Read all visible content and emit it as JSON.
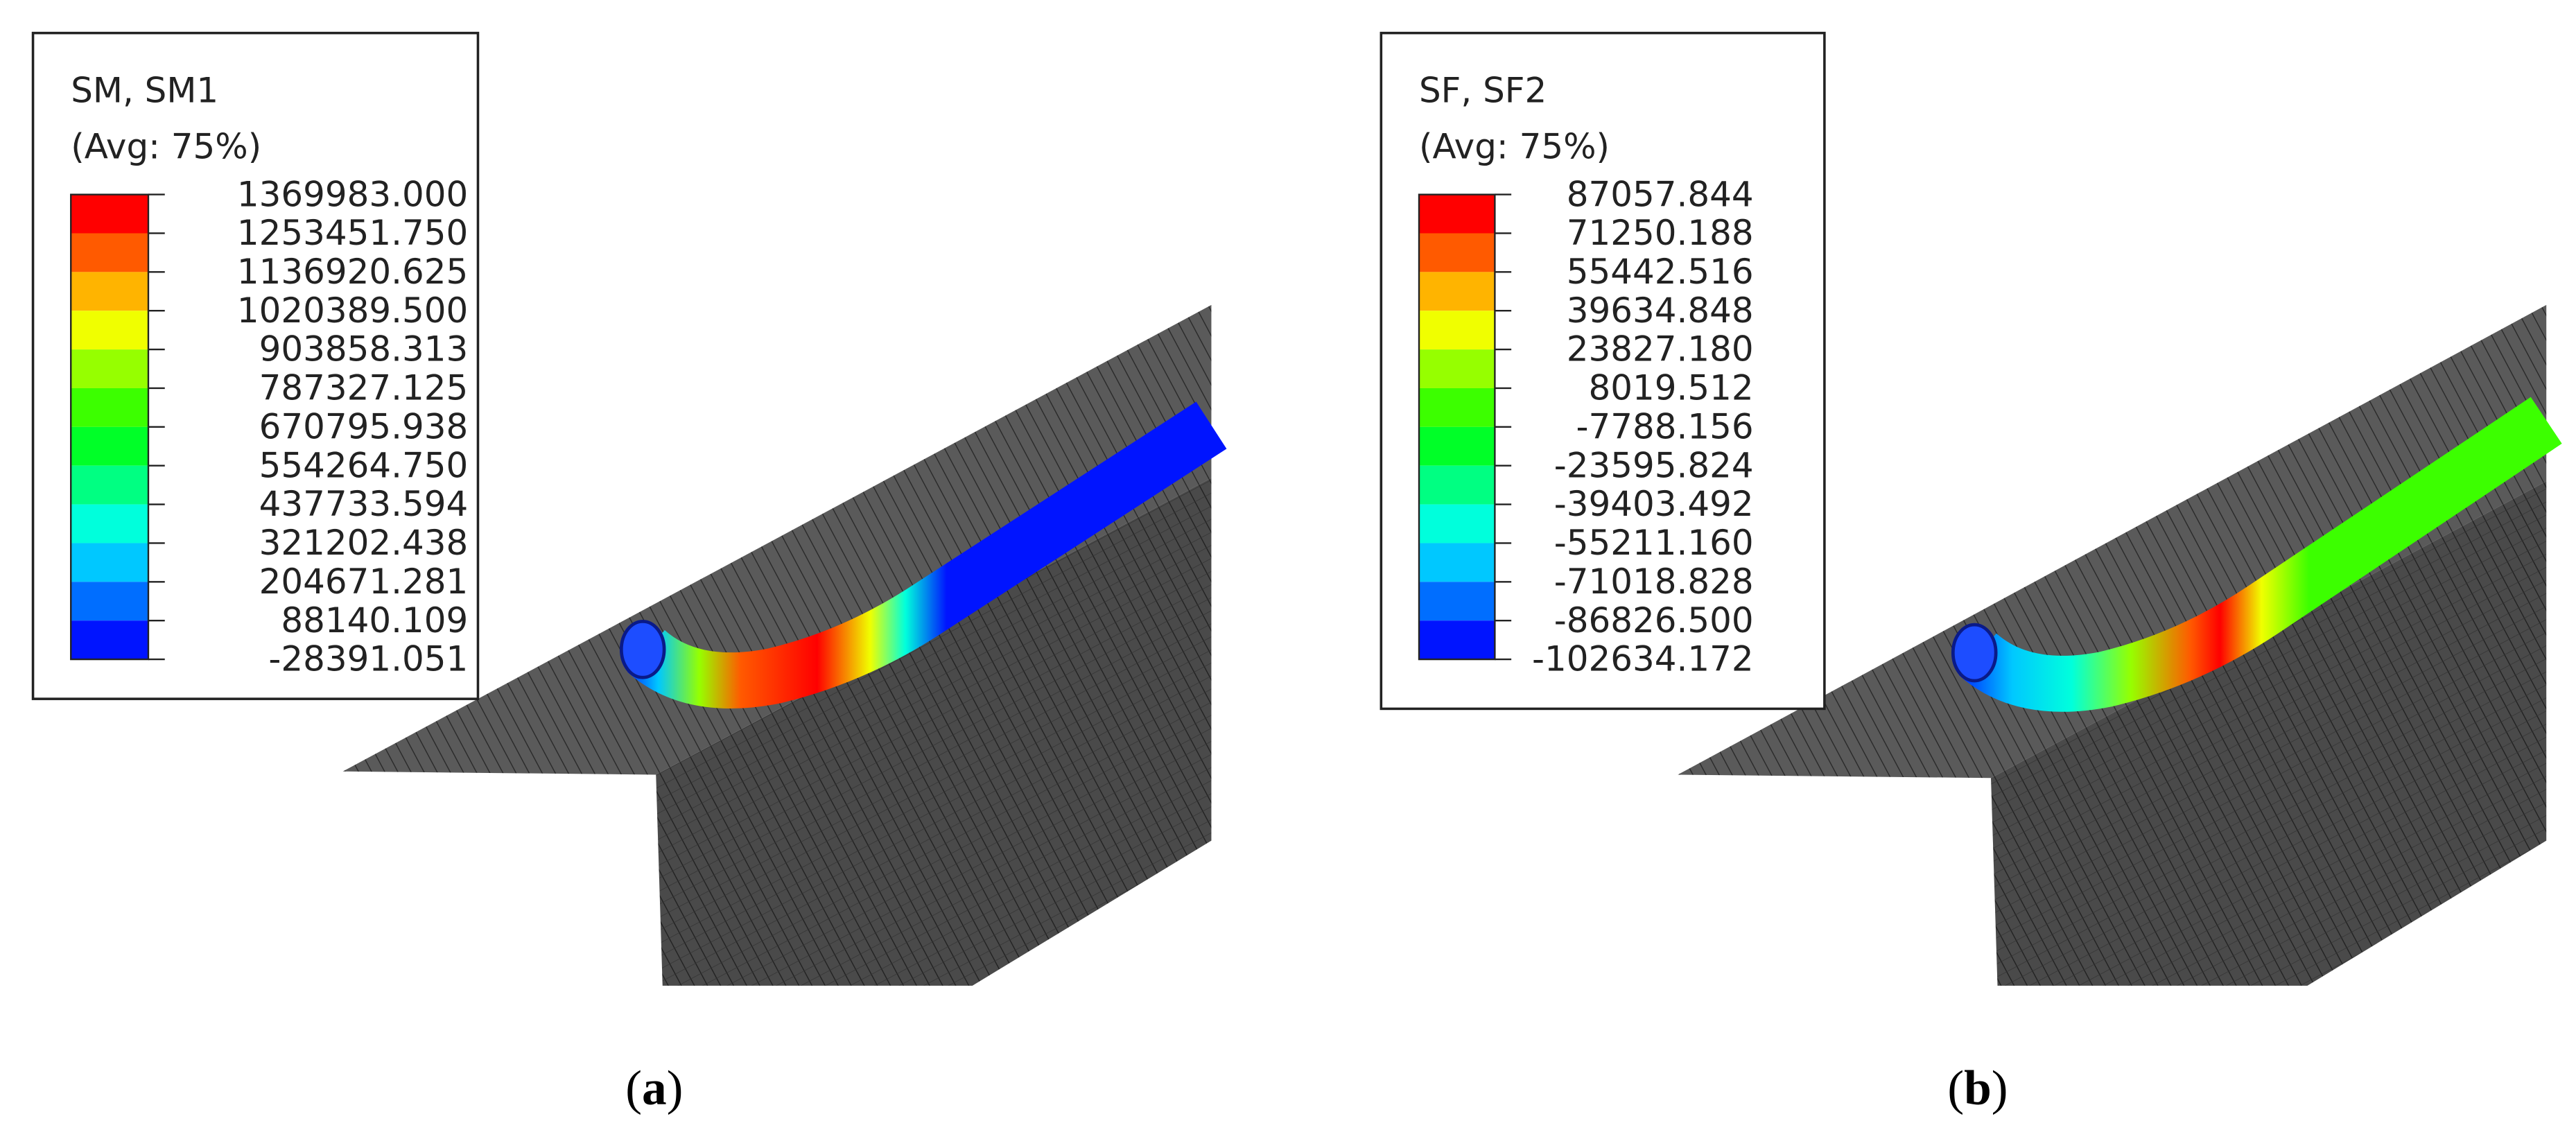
{
  "panels": [
    {
      "legend": {
        "title": "SM, SM1",
        "subtitle": "(Avg: 75%)",
        "levels": [
          "1369983.000",
          "1253451.750",
          "1136920.625",
          "1020389.500",
          "903858.313",
          "787327.125",
          "670795.938",
          "554264.750",
          "437733.594",
          "321202.438",
          "204671.281",
          "88140.109",
          "-28391.051"
        ],
        "colors": [
          "#ff0000",
          "#ff5a00",
          "#ffb400",
          "#f0ff00",
          "#96ff00",
          "#3cff00",
          "#00ff28",
          "#00ff82",
          "#00ffdc",
          "#00c8ff",
          "#006eff",
          "#0014ff"
        ]
      },
      "caption": {
        "open": "(",
        "letter": "a",
        "close": ")"
      }
    },
    {
      "legend": {
        "title": "SF, SF2",
        "subtitle": "(Avg: 75%)",
        "levels": [
          "87057.844",
          "71250.188",
          "55442.516",
          "39634.848",
          "23827.180",
          "8019.512",
          "-7788.156",
          "-23595.824",
          "-39403.492",
          "-55211.160",
          "-71018.828",
          "-86826.500",
          "-102634.172"
        ],
        "colors": [
          "#ff0000",
          "#ff5a00",
          "#ffb400",
          "#f0ff00",
          "#96ff00",
          "#3cff00",
          "#00ff28",
          "#00ff82",
          "#00ffdc",
          "#00c8ff",
          "#006eff",
          "#0014ff"
        ]
      },
      "caption": {
        "open": "(",
        "letter": "b",
        "close": ")"
      }
    }
  ]
}
